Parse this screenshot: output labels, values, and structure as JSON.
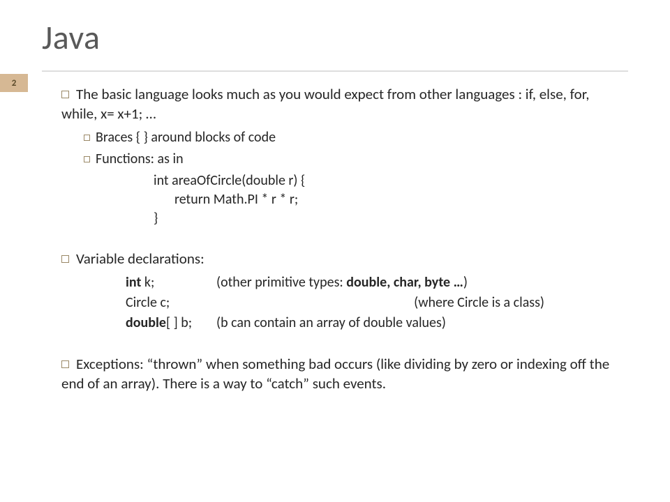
{
  "title": "Java",
  "page_number": "2",
  "colors": {
    "title": "#595959",
    "rule": "#dedede",
    "badge_bg": "#d6b894",
    "badge_text": "#5a4a2a",
    "bullet_border": "#9a8866",
    "body_text": "#262626",
    "background": "#ffffff"
  },
  "typography": {
    "family": "Gill Sans",
    "title_size_pt": 36,
    "body_size_pt": 16
  },
  "bullets": {
    "b1": {
      "text_a": "The basic language looks much as you would expect from other languages : if, else, for, while, x= x+1; …",
      "sub1": "Braces {  } around blocks of code",
      "sub2": "Functions: as in",
      "code": {
        "l1": "int areaOfCircle(double r) {",
        "l2": "return Math.PI * r * r;",
        "l3": "}"
      }
    },
    "b2": {
      "text": "Variable declarations:",
      "d1_left": "int",
      "d1_left2": " k;",
      "d1_right_a": "(other primitive types: ",
      "d1_right_b": "double, char, byte …",
      "d1_right_c": ")",
      "d2_left": "Circle c;",
      "d2_right": "(where Circle is a class)",
      "d3_left": "double",
      "d3_left2": "[ ] b;",
      "d3_right": "(b can contain an array of double values)"
    },
    "b3": {
      "text": "Exceptions: “thrown” when something bad occurs (like dividing by zero or indexing off the end of an array).  There is a way to “catch” such events."
    }
  }
}
